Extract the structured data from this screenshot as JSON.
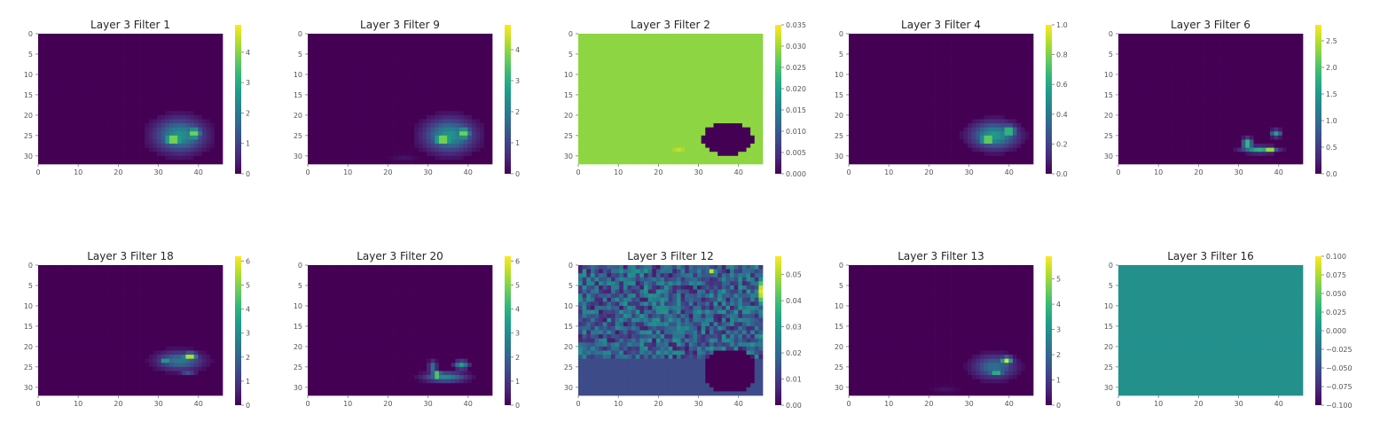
{
  "figure": {
    "grid": "2x5",
    "colormap": "viridis",
    "colormap_stops": [
      "#440154",
      "#482878",
      "#3e4989",
      "#31688e",
      "#26828e",
      "#1f9e89",
      "#35b779",
      "#6ece58",
      "#b5de2b",
      "#fde725"
    ],
    "background": "#ffffff"
  },
  "chart_data": [
    {
      "type": "heatmap",
      "title": "Layer 3 Filter 1",
      "xlim": [
        0,
        45
      ],
      "ylim": [
        31,
        0
      ],
      "x_ticks": [
        "0",
        "10",
        "20",
        "30",
        "40"
      ],
      "y_ticks": [
        "0",
        "5",
        "10",
        "15",
        "20",
        "25",
        "30"
      ],
      "cmap_range": [
        0,
        4.9
      ],
      "colorbar_ticks": [
        "0",
        "1",
        "2",
        "3",
        "4"
      ],
      "background_value": 0,
      "blobs": [
        {
          "cx": 34,
          "cy": 24.5,
          "rx": 6,
          "ry": 4,
          "v": 2.5
        },
        {
          "cx": 32.5,
          "cy": 25.5,
          "rx": 2.5,
          "ry": 1.5,
          "v": 4.6
        },
        {
          "cx": 37.5,
          "cy": 24,
          "rx": 1.8,
          "ry": 1.6,
          "v": 4.2
        }
      ]
    },
    {
      "type": "heatmap",
      "title": "Layer 3 Filter 9",
      "xlim": [
        0,
        45
      ],
      "ylim": [
        31,
        0
      ],
      "x_ticks": [
        "0",
        "10",
        "20",
        "30",
        "40"
      ],
      "y_ticks": [
        "0",
        "5",
        "10",
        "15",
        "20",
        "25",
        "30"
      ],
      "cmap_range": [
        0,
        4.8
      ],
      "colorbar_ticks": [
        "0",
        "1",
        "2",
        "3",
        "4"
      ],
      "background_value": 0,
      "blobs": [
        {
          "cx": 34,
          "cy": 24.5,
          "rx": 6,
          "ry": 4,
          "v": 2.5
        },
        {
          "cx": 32.5,
          "cy": 25.5,
          "rx": 2.5,
          "ry": 1.5,
          "v": 4.5
        },
        {
          "cx": 37.5,
          "cy": 24,
          "rx": 1.8,
          "ry": 1.6,
          "v": 4.1
        },
        {
          "cx": 23,
          "cy": 30,
          "rx": 3,
          "ry": 0.8,
          "v": 0.25
        }
      ]
    },
    {
      "type": "heatmap",
      "title": "Layer 3 Filter 2",
      "xlim": [
        0,
        45
      ],
      "ylim": [
        31,
        0
      ],
      "x_ticks": [
        "0",
        "10",
        "20",
        "30",
        "40"
      ],
      "y_ticks": [
        "0",
        "5",
        "10",
        "15",
        "20",
        "25",
        "30"
      ],
      "cmap_range": [
        0,
        0.035
      ],
      "colorbar_ticks": [
        "0.000",
        "0.005",
        "0.010",
        "0.015",
        "0.020",
        "0.025",
        "0.030",
        "0.035"
      ],
      "background_value": 0.029,
      "blobs": [
        {
          "cx": 35.5,
          "cy": 20.6,
          "rx": 5,
          "ry": 0.6,
          "v": 0.035
        },
        {
          "cx": 24,
          "cy": 28,
          "rx": 5,
          "ry": 1.5,
          "v": 0.032
        },
        {
          "cx": 36,
          "cy": 25.3,
          "rx": 6.3,
          "ry": 4.2,
          "v": 0,
          "mode": "set"
        }
      ]
    },
    {
      "type": "heatmap",
      "title": "Layer 3 Filter 4",
      "xlim": [
        0,
        45
      ],
      "ylim": [
        31,
        0
      ],
      "x_ticks": [
        "0",
        "10",
        "20",
        "30",
        "40"
      ],
      "y_ticks": [
        "0",
        "5",
        "10",
        "15",
        "20",
        "25",
        "30"
      ],
      "cmap_range": [
        0,
        1.0
      ],
      "colorbar_ticks": [
        "0.0",
        "0.2",
        "0.4",
        "0.6",
        "0.8",
        "1.0"
      ],
      "background_value": 0,
      "blobs": [
        {
          "cx": 35,
          "cy": 24.5,
          "rx": 5.5,
          "ry": 3.2,
          "v": 0.55
        },
        {
          "cx": 33.5,
          "cy": 25.5,
          "rx": 2.2,
          "ry": 1.3,
          "v": 0.95
        },
        {
          "cx": 38.5,
          "cy": 23.5,
          "rx": 1.8,
          "ry": 1.5,
          "v": 0.8
        }
      ]
    },
    {
      "type": "heatmap",
      "title": "Layer 3 Filter 6",
      "xlim": [
        0,
        45
      ],
      "ylim": [
        31,
        0
      ],
      "x_ticks": [
        "0",
        "10",
        "20",
        "30",
        "40"
      ],
      "y_ticks": [
        "0",
        "5",
        "10",
        "15",
        "20",
        "25",
        "30"
      ],
      "cmap_range": [
        0,
        2.8
      ],
      "colorbar_ticks": [
        "0.0",
        "0.5",
        "1.0",
        "1.5",
        "2.0",
        "2.5"
      ],
      "background_value": 0,
      "blobs": [
        {
          "cx": 34,
          "cy": 28,
          "rx": 4.2,
          "ry": 0.8,
          "v": 1.8
        },
        {
          "cx": 31,
          "cy": 26.5,
          "rx": 1.2,
          "ry": 1.3,
          "v": 2.2
        },
        {
          "cx": 36.5,
          "cy": 28,
          "rx": 1.5,
          "ry": 0.7,
          "v": 2.7
        },
        {
          "cx": 38,
          "cy": 24,
          "rx": 1.3,
          "ry": 0.9,
          "v": 1.6
        }
      ]
    },
    {
      "type": "heatmap",
      "title": "Layer 3 Filter 18",
      "xlim": [
        0,
        45
      ],
      "ylim": [
        31,
        0
      ],
      "x_ticks": [
        "0",
        "10",
        "20",
        "30",
        "40"
      ],
      "y_ticks": [
        "0",
        "5",
        "10",
        "15",
        "20",
        "25",
        "30"
      ],
      "cmap_range": [
        0,
        6.2
      ],
      "colorbar_ticks": [
        "0",
        "1",
        "2",
        "3",
        "4",
        "5",
        "6"
      ],
      "background_value": 0,
      "blobs": [
        {
          "cx": 34,
          "cy": 23,
          "rx": 5.5,
          "ry": 2.2,
          "v": 2.5
        },
        {
          "cx": 36.5,
          "cy": 22,
          "rx": 1.8,
          "ry": 1,
          "v": 6
        },
        {
          "cx": 30.5,
          "cy": 23,
          "rx": 1.2,
          "ry": 1,
          "v": 4
        },
        {
          "cx": 36,
          "cy": 26,
          "rx": 2,
          "ry": 0.6,
          "v": 1.5
        }
      ]
    },
    {
      "type": "heatmap",
      "title": "Layer 3 Filter 20",
      "xlim": [
        0,
        45
      ],
      "ylim": [
        31,
        0
      ],
      "x_ticks": [
        "0",
        "10",
        "20",
        "30",
        "40"
      ],
      "y_ticks": [
        "0",
        "5",
        "10",
        "15",
        "20",
        "25",
        "30"
      ],
      "cmap_range": [
        0,
        6.2
      ],
      "colorbar_ticks": [
        "0",
        "1",
        "2",
        "3",
        "4",
        "5",
        "6"
      ],
      "background_value": 0,
      "blobs": [
        {
          "cx": 33,
          "cy": 27,
          "rx": 5,
          "ry": 1.2,
          "v": 3
        },
        {
          "cx": 31,
          "cy": 26.5,
          "rx": 1.2,
          "ry": 1,
          "v": 6
        },
        {
          "cx": 30,
          "cy": 24.5,
          "rx": 1,
          "ry": 1.5,
          "v": 2.5
        },
        {
          "cx": 37,
          "cy": 24,
          "rx": 1.8,
          "ry": 1,
          "v": 3.5
        }
      ]
    },
    {
      "type": "heatmap",
      "title": "Layer 3 Filter 12",
      "xlim": [
        0,
        45
      ],
      "ylim": [
        31,
        0
      ],
      "x_ticks": [
        "0",
        "10",
        "20",
        "30",
        "40"
      ],
      "y_ticks": [
        "0",
        "5",
        "10",
        "15",
        "20",
        "25",
        "30"
      ],
      "cmap_range": [
        0,
        0.057
      ],
      "colorbar_ticks": [
        "0.00",
        "0.01",
        "0.02",
        "0.03",
        "0.04",
        "0.05"
      ],
      "background_value": 0.013,
      "noise": {
        "amplitude": 0.016,
        "rows": [
          0,
          22
        ]
      },
      "blobs": [
        {
          "cx": 44,
          "cy": 6,
          "rx": 1,
          "ry": 4,
          "v": 0.055
        },
        {
          "cx": 32,
          "cy": 1,
          "rx": 1,
          "ry": 0.8,
          "v": 0.052
        },
        {
          "cx": 36.5,
          "cy": 25.5,
          "rx": 6.5,
          "ry": 5.5,
          "v": 0,
          "mode": "set"
        }
      ]
    },
    {
      "type": "heatmap",
      "title": "Layer 3 Filter 13",
      "xlim": [
        0,
        45
      ],
      "ylim": [
        31,
        0
      ],
      "x_ticks": [
        "0",
        "10",
        "20",
        "30",
        "40"
      ],
      "y_ticks": [
        "0",
        "5",
        "10",
        "15",
        "20",
        "25",
        "30"
      ],
      "cmap_range": [
        0,
        5.9
      ],
      "colorbar_ticks": [
        "0",
        "1",
        "2",
        "3",
        "4",
        "5"
      ],
      "background_value": 0,
      "blobs": [
        {
          "cx": 35,
          "cy": 24.5,
          "rx": 5,
          "ry": 2.8,
          "v": 2.2
        },
        {
          "cx": 38,
          "cy": 23,
          "rx": 1.5,
          "ry": 1,
          "v": 5.6
        },
        {
          "cx": 35.5,
          "cy": 26,
          "rx": 1.8,
          "ry": 0.8,
          "v": 4
        },
        {
          "cx": 23,
          "cy": 30,
          "rx": 3,
          "ry": 0.8,
          "v": 0.3
        }
      ]
    },
    {
      "type": "heatmap",
      "title": "Layer 3 Filter 16",
      "xlim": [
        0,
        45
      ],
      "ylim": [
        31,
        0
      ],
      "x_ticks": [
        "0",
        "10",
        "20",
        "30",
        "40"
      ],
      "y_ticks": [
        "0",
        "5",
        "10",
        "15",
        "20",
        "25",
        "30"
      ],
      "cmap_range": [
        -0.1,
        0.1
      ],
      "colorbar_ticks": [
        "0.100",
        "0.075",
        "0.050",
        "0.025",
        "0.000",
        "−0.025",
        "−0.050",
        "−0.075",
        "−0.100"
      ],
      "background_value": 0,
      "blobs": []
    }
  ]
}
